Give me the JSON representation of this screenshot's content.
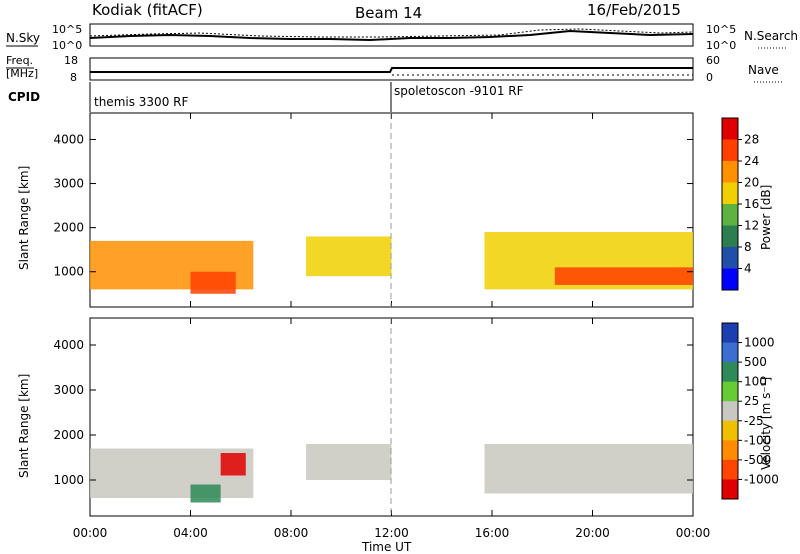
{
  "header": {
    "station": "Kodiak (fitACF)",
    "beam": "Beam 14",
    "date": "16/Feb/2015"
  },
  "noise_panel": {
    "left_label": "N.Sky",
    "right_label": "N.Search",
    "left_ticks": [
      "10^5",
      "10^0"
    ],
    "right_ticks": [
      "10^5",
      "10^0"
    ]
  },
  "freq_panel": {
    "left_label_line1": "Freq.",
    "left_label_line2": "[MHz]",
    "right_label": "Nave",
    "left_ticks": [
      "18",
      "8"
    ],
    "right_ticks": [
      "60",
      "0"
    ]
  },
  "cpid": {
    "label": "CPID",
    "segments": [
      {
        "name": "themis 3300 RF",
        "start_hour": 0
      },
      {
        "name": "spoletoscon -9101 RF",
        "start_hour": 12
      }
    ]
  },
  "chart_data": [
    {
      "type": "heatmap",
      "title": "",
      "xlabel": "Time UT",
      "ylabel": "Slant Range [km]",
      "xlim": [
        0,
        24
      ],
      "ylim": [
        200,
        4600
      ],
      "xticks": [
        "00:00",
        "04:00",
        "08:00",
        "12:00",
        "16:00",
        "20:00",
        "00:00"
      ],
      "yticks": [
        1000,
        2000,
        3000,
        4000
      ],
      "colorbar": {
        "label": "Power [dB]",
        "ticks": [
          4,
          8,
          12,
          16,
          20,
          24,
          28
        ],
        "colors": [
          "#0000ff",
          "#1f4fa8",
          "#2e7d4f",
          "#5cb340",
          "#f0d000",
          "#ff9000",
          "#ff4000",
          "#e00000"
        ]
      },
      "regions": [
        {
          "t_start": 0.0,
          "t_end": 6.5,
          "range_low": 600,
          "range_high": 1700,
          "level": 22
        },
        {
          "t_start": 4.0,
          "t_end": 5.8,
          "range_low": 500,
          "range_high": 1000,
          "level": 26
        },
        {
          "t_start": 8.6,
          "t_end": 12.0,
          "range_low": 900,
          "range_high": 1800,
          "level": 18
        },
        {
          "t_start": 15.7,
          "t_end": 24.0,
          "range_low": 600,
          "range_high": 1900,
          "level": 18
        },
        {
          "t_start": 18.5,
          "t_end": 24.0,
          "range_low": 700,
          "range_high": 1100,
          "level": 26
        }
      ]
    },
    {
      "type": "heatmap",
      "title": "",
      "xlabel": "Time UT",
      "ylabel": "Slant Range [km]",
      "xlim": [
        0,
        24
      ],
      "ylim": [
        200,
        4600
      ],
      "xticks": [
        "00:00",
        "04:00",
        "08:00",
        "12:00",
        "16:00",
        "20:00",
        "00:00"
      ],
      "yticks": [
        1000,
        2000,
        3000,
        4000
      ],
      "colorbar": {
        "label": "Velocity [m s⁻¹]",
        "ticks": [
          1000,
          500,
          100,
          25,
          -25,
          -100,
          -500,
          -1000
        ],
        "colors": [
          "#1b3fb0",
          "#3a6fd0",
          "#2e8b57",
          "#66cc33",
          "#c8c8c0",
          "#f0c000",
          "#ff8c00",
          "#ff4500",
          "#e00000"
        ]
      },
      "regions": [
        {
          "t_start": 0.0,
          "t_end": 6.5,
          "range_low": 600,
          "range_high": 1700,
          "velocity": 0
        },
        {
          "t_start": 4.0,
          "t_end": 5.2,
          "range_low": 500,
          "range_high": 900,
          "velocity": 150
        },
        {
          "t_start": 5.2,
          "t_end": 6.2,
          "range_low": 1100,
          "range_high": 1600,
          "velocity": -700
        },
        {
          "t_start": 8.6,
          "t_end": 12.0,
          "range_low": 1000,
          "range_high": 1800,
          "velocity": 0
        },
        {
          "t_start": 15.7,
          "t_end": 24.0,
          "range_low": 700,
          "range_high": 1800,
          "velocity": 0
        }
      ]
    }
  ]
}
